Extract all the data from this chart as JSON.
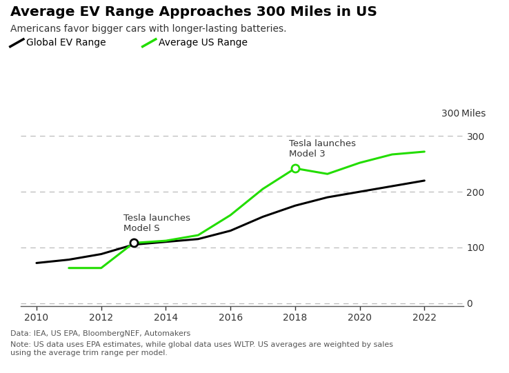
{
  "title": "Average EV Range Approaches 300 Miles in US",
  "subtitle": "Americans favor bigger cars with longer-lasting batteries.",
  "footnote1": "Data: IEA, US EPA, BloombergNEF, Automakers",
  "footnote2": "Note: US data uses EPA estimates, while global data uses WLTP. US averages are weighted by sales\nusing the average trim range per model.",
  "legend_global": "Global EV Range",
  "legend_us": "Average US Range",
  "range_label": "300 Miles",
  "global_x": [
    2010,
    2011,
    2012,
    2013,
    2014,
    2015,
    2016,
    2017,
    2018,
    2019,
    2020,
    2021,
    2022
  ],
  "global_y": [
    72,
    78,
    88,
    105,
    110,
    115,
    130,
    155,
    175,
    190,
    200,
    210,
    220
  ],
  "us_x": [
    2011,
    2012,
    2013,
    2014,
    2015,
    2016,
    2017,
    2018,
    2019,
    2020,
    2021,
    2022
  ],
  "us_y": [
    63,
    63,
    108,
    112,
    122,
    158,
    205,
    242,
    232,
    252,
    267,
    272
  ],
  "global_color": "#000000",
  "us_color": "#22dd00",
  "background_color": "#ffffff",
  "grid_color": "#bbbbbb",
  "xlim": [
    2009.5,
    2023.2
  ],
  "ylim": [
    -5,
    330
  ],
  "yticks": [
    0,
    100,
    200,
    300
  ],
  "xticks": [
    2010,
    2012,
    2014,
    2016,
    2018,
    2020,
    2022
  ],
  "model_s_x": 2013,
  "model_s_y": 108,
  "model_s_text": "Tesla launches\nModel S",
  "model3_x": 2018,
  "model3_y": 242,
  "model3_text": "Tesla launches\nModel 3"
}
